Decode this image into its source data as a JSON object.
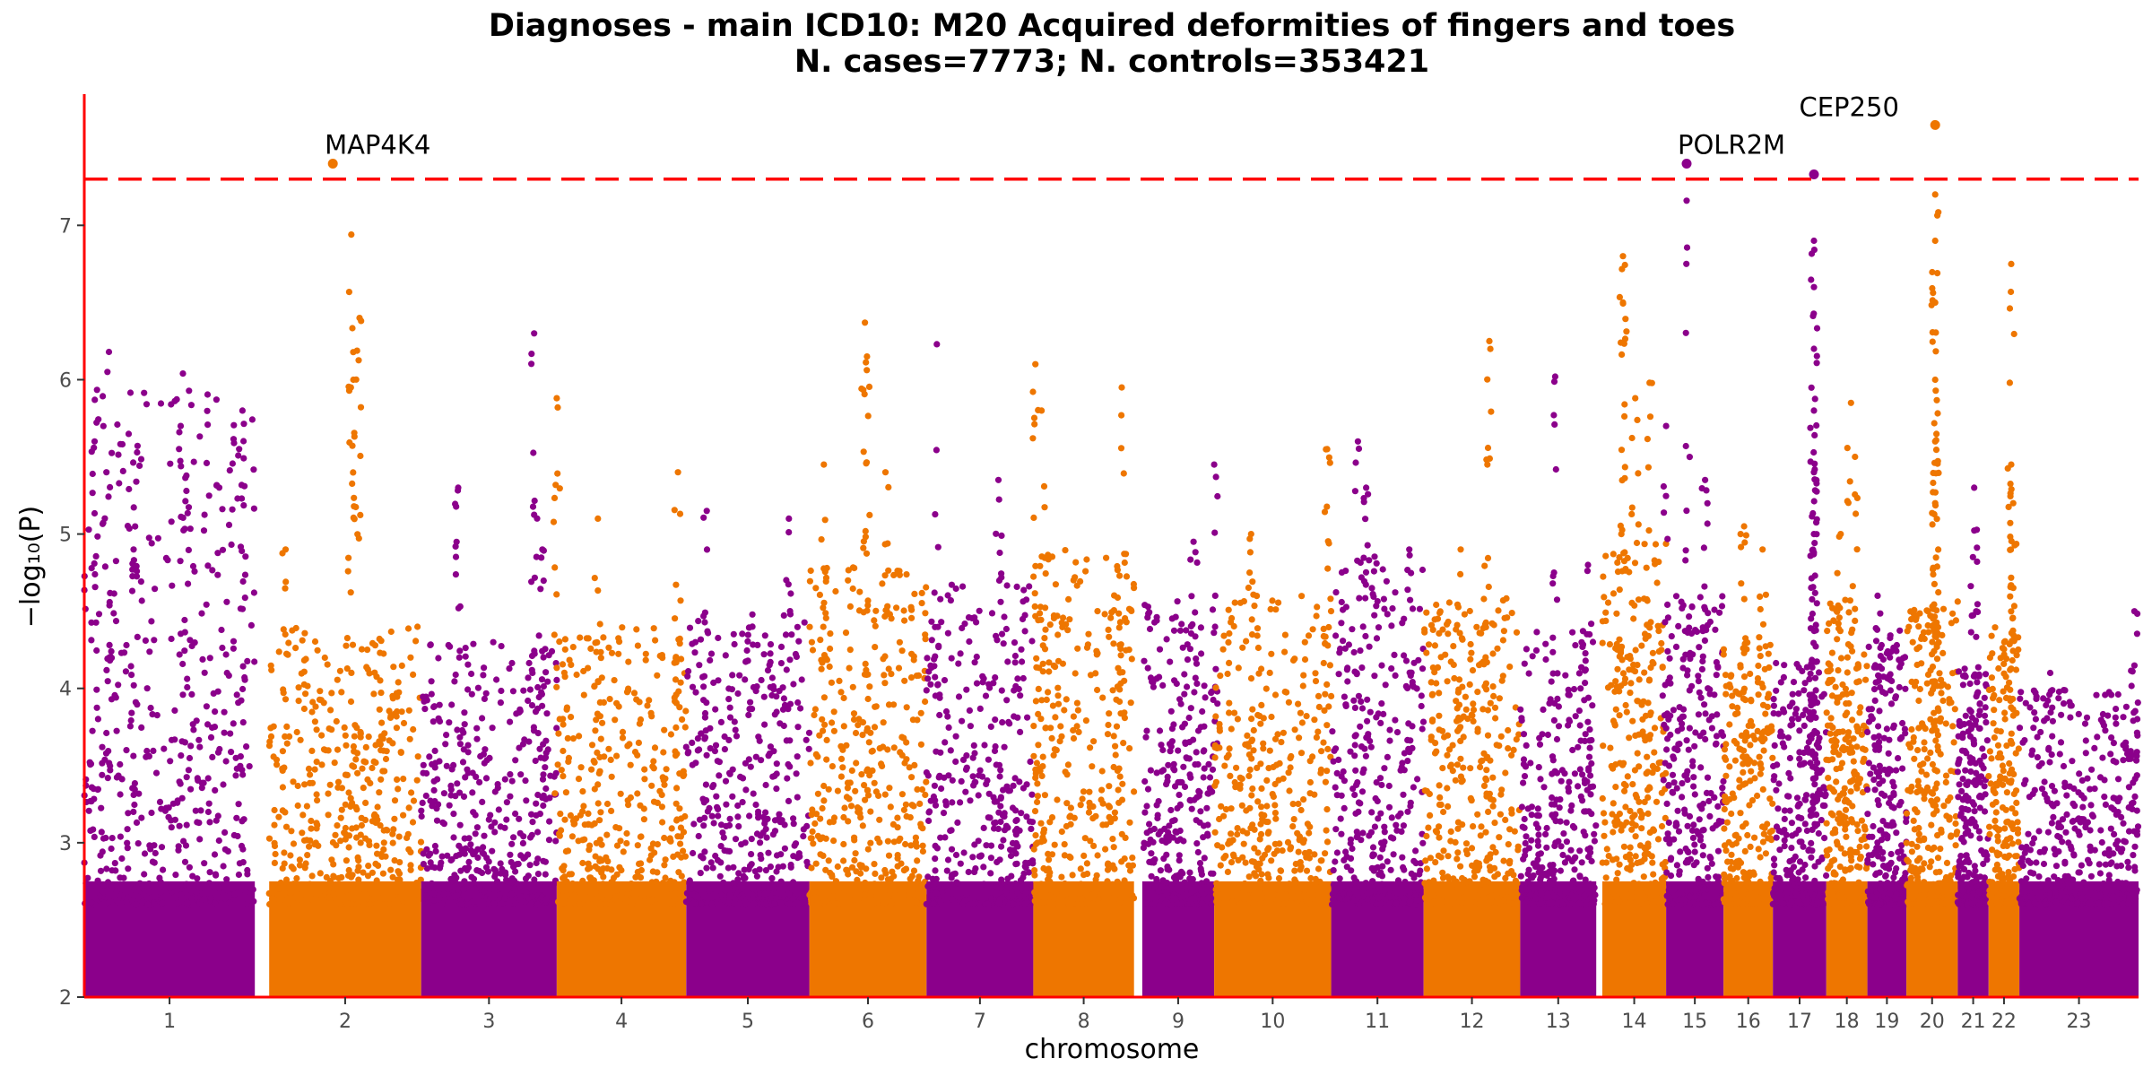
{
  "chart_data": {
    "type": "scatter",
    "title": "Diagnoses - main ICD10: M20 Acquired deformities of fingers and toes",
    "subtitle": "N. cases=7773; N. controls=353421",
    "xlabel": "chromosome",
    "ylabel": "−log₁₀(P)",
    "ylim": [
      2,
      7.85
    ],
    "yticks": [
      2,
      3,
      4,
      5,
      6,
      7
    ],
    "threshold": 7.3,
    "colors": {
      "odd": "#8b008b",
      "even": "#ee7600",
      "threshold": "#ff0000",
      "axis": "#ff0000"
    },
    "grid": false,
    "legend": "none",
    "chromosomes": [
      {
        "label": "1",
        "start": 0.0,
        "end": 8.3,
        "peak": 5.95,
        "spikes": [
          [
            1.2,
            6.18
          ],
          [
            4.8,
            6.04
          ],
          [
            7.7,
            5.8
          ],
          [
            0.5,
            5.6
          ],
          [
            2.4,
            4.9
          ]
        ]
      },
      {
        "label": "2",
        "start": 9.0,
        "end": 16.4,
        "peak": 4.4,
        "spikes": [
          [
            13.0,
            6.94
          ],
          [
            13.4,
            6.4
          ],
          [
            13.1,
            6.0
          ],
          [
            9.8,
            4.9
          ]
        ]
      },
      {
        "label": "3",
        "start": 16.4,
        "end": 23.0,
        "peak": 4.3,
        "spikes": [
          [
            21.9,
            6.3
          ],
          [
            18.2,
            5.3
          ],
          [
            22.3,
            4.9
          ]
        ]
      },
      {
        "label": "4",
        "start": 23.0,
        "end": 29.3,
        "peak": 4.4,
        "spikes": [
          [
            23.0,
            5.88
          ],
          [
            25.0,
            5.1
          ],
          [
            28.9,
            5.4
          ]
        ]
      },
      {
        "label": "5",
        "start": 29.3,
        "end": 35.3,
        "peak": 4.5,
        "spikes": [
          [
            30.3,
            5.15
          ],
          [
            34.3,
            5.1
          ]
        ]
      },
      {
        "label": "6",
        "start": 35.3,
        "end": 41.0,
        "peak": 4.8,
        "spikes": [
          [
            38.0,
            6.37
          ],
          [
            38.1,
            6.15
          ],
          [
            39.0,
            5.4
          ],
          [
            36.0,
            5.45
          ]
        ]
      },
      {
        "label": "7",
        "start": 41.0,
        "end": 46.2,
        "peak": 4.7,
        "spikes": [
          [
            41.5,
            6.23
          ],
          [
            44.5,
            5.35
          ]
        ]
      },
      {
        "label": "8",
        "start": 46.2,
        "end": 51.1,
        "peak": 4.9,
        "spikes": [
          [
            46.3,
            6.1
          ],
          [
            46.6,
            5.8
          ],
          [
            50.5,
            5.95
          ]
        ]
      },
      {
        "label": "9",
        "start": 51.5,
        "end": 55.0,
        "peak": 4.6,
        "spikes": [
          [
            55.0,
            5.45
          ],
          [
            54.0,
            4.95
          ]
        ]
      },
      {
        "label": "10",
        "start": 55.0,
        "end": 60.7,
        "peak": 4.6,
        "spikes": [
          [
            56.8,
            5.0
          ],
          [
            60.5,
            5.55
          ]
        ]
      },
      {
        "label": "11",
        "start": 60.7,
        "end": 65.2,
        "peak": 4.9,
        "spikes": [
          [
            62.4,
            5.3
          ],
          [
            62.0,
            5.6
          ],
          [
            64.5,
            4.9
          ]
        ]
      },
      {
        "label": "12",
        "start": 65.2,
        "end": 69.9,
        "peak": 4.6,
        "spikes": [
          [
            68.4,
            6.25
          ],
          [
            67.0,
            4.9
          ],
          [
            68.3,
            5.45
          ]
        ]
      },
      {
        "label": "13",
        "start": 69.9,
        "end": 73.6,
        "peak": 4.4,
        "spikes": [
          [
            71.6,
            6.02
          ],
          [
            73.2,
            4.8
          ]
        ]
      },
      {
        "label": "14",
        "start": 73.9,
        "end": 77.0,
        "peak": 5.0,
        "spikes": [
          [
            74.9,
            6.8
          ],
          [
            74.9,
            6.5
          ],
          [
            76.2,
            5.98
          ],
          [
            75.5,
            5.88
          ]
        ]
      },
      {
        "label": "15",
        "start": 77.0,
        "end": 79.8,
        "peak": 4.6,
        "spikes": [
          [
            77.0,
            5.7
          ],
          [
            78.0,
            7.16
          ],
          [
            78.9,
            5.35
          ]
        ]
      },
      {
        "label": "16",
        "start": 79.8,
        "end": 82.2,
        "peak": 4.3,
        "spikes": [
          [
            81.7,
            4.9
          ],
          [
            80.8,
            5.05
          ]
        ]
      },
      {
        "label": "17",
        "start": 82.2,
        "end": 84.8,
        "peak": 4.2,
        "spikes": [
          [
            84.2,
            6.9
          ],
          [
            84.2,
            6.6
          ],
          [
            84.2,
            6.2
          ],
          [
            84.2,
            5.8
          ],
          [
            84.2,
            5.4
          ],
          [
            84.2,
            5.0
          ]
        ]
      },
      {
        "label": "18",
        "start": 84.8,
        "end": 86.8,
        "peak": 4.6,
        "spikes": [
          [
            86.0,
            5.85
          ],
          [
            86.2,
            5.5
          ],
          [
            85.5,
            5.0
          ]
        ]
      },
      {
        "label": "19",
        "start": 86.8,
        "end": 88.7,
        "peak": 4.4,
        "spikes": [
          [
            87.3,
            4.6
          ]
        ]
      },
      {
        "label": "20",
        "start": 88.7,
        "end": 91.2,
        "peak": 4.6,
        "spikes": [
          [
            90.1,
            7.2
          ],
          [
            90.1,
            6.9
          ],
          [
            90.1,
            6.5
          ],
          [
            90.1,
            6.0
          ],
          [
            90.1,
            5.6
          ],
          [
            90.1,
            5.2
          ]
        ]
      },
      {
        "label": "21",
        "start": 91.2,
        "end": 92.7,
        "peak": 4.2,
        "spikes": [
          [
            92.0,
            5.3
          ],
          [
            92.1,
            4.5
          ]
        ]
      },
      {
        "label": "22",
        "start": 92.7,
        "end": 94.2,
        "peak": 4.4,
        "spikes": [
          [
            93.8,
            6.75
          ],
          [
            93.8,
            5.45
          ],
          [
            93.9,
            5.2
          ]
        ]
      },
      {
        "label": "23",
        "start": 94.2,
        "end": 100.0,
        "peak": 4.0,
        "spikes": [
          [
            99.8,
            4.5
          ],
          [
            95.7,
            4.1
          ]
        ]
      }
    ],
    "hits": [
      {
        "gene": "MAP4K4",
        "x": 12.1,
        "y": 7.4,
        "chromosome": "2"
      },
      {
        "gene": "POLR2M",
        "x": 78.0,
        "y": 7.4,
        "chromosome": "15"
      },
      {
        "gene": "",
        "x": 84.2,
        "y": 7.33,
        "chromosome": "17"
      },
      {
        "gene": "CEP250",
        "x": 90.1,
        "y": 7.65,
        "chromosome": "20"
      }
    ]
  }
}
